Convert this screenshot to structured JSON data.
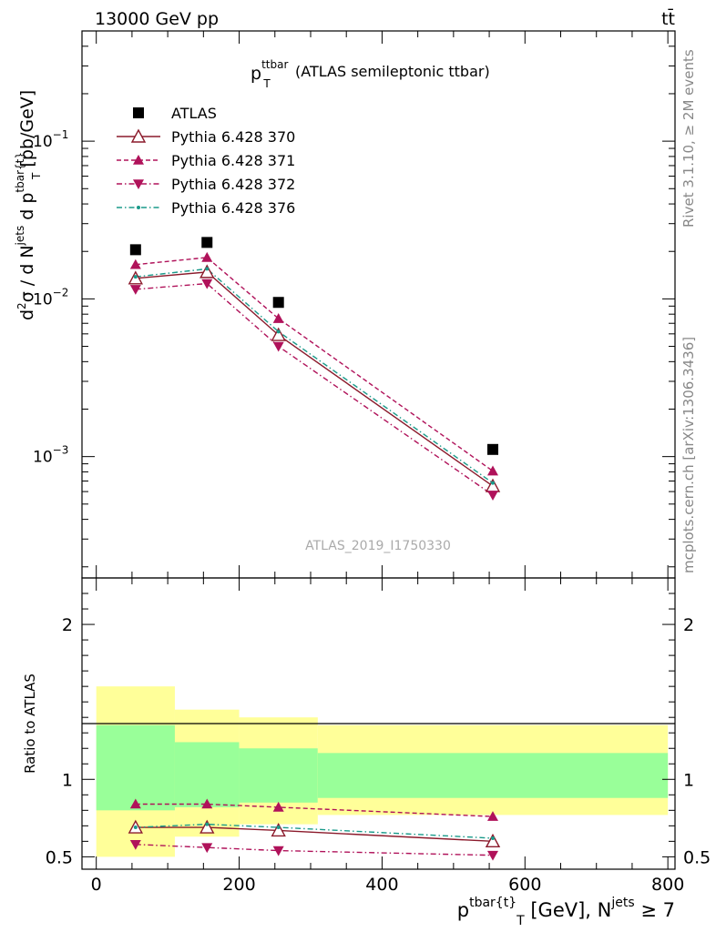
{
  "header": {
    "beam": "13000 GeV pp",
    "process": "tt̄"
  },
  "side_labels": {
    "rivet": "Rivet 3.1.10, ≥ 2M events",
    "mcplots": "mcplots.cern.ch [arXiv:1306.3436]"
  },
  "chart_data": [
    {
      "type": "line",
      "title_main": "p",
      "title_sup": "ttbar",
      "title_sub": "T",
      "title_rest": "(ATLAS semileptonic ttbar)",
      "watermark": "ATLAS_2019_I1750330",
      "ylabel": "d²σ / d N^jets d p^tbar{t}_T [pb/GeV]",
      "yscale": "log",
      "xlim": [
        -20,
        810
      ],
      "ylim": [
        0.00017,
        0.5
      ],
      "yticks": [
        {
          "value": 0.001,
          "mant": "10",
          "exp": "−3"
        },
        {
          "value": 0.01,
          "mant": "10",
          "exp": "−2"
        },
        {
          "value": 0.1,
          "mant": "10",
          "exp": "−1"
        }
      ],
      "legend_position": "top-left",
      "series": [
        {
          "name": "ATLAS",
          "color": "#000000",
          "marker": "square",
          "x": [
            55,
            155,
            255,
            555
          ],
          "y": [
            0.0205,
            0.0228,
            0.0095,
            0.00111
          ]
        },
        {
          "name": "Pythia 6.428 370",
          "color": "#8b1a2b",
          "marker": "triangle-up-open",
          "dash": "",
          "x": [
            55,
            155,
            255,
            555
          ],
          "y": [
            0.0135,
            0.0148,
            0.0059,
            0.00065
          ]
        },
        {
          "name": "Pythia 6.428 371",
          "color": "#b0125a",
          "marker": "triangle-up",
          "dash": "5,3",
          "x": [
            55,
            155,
            255,
            555
          ],
          "y": [
            0.0165,
            0.0183,
            0.0075,
            0.00081
          ]
        },
        {
          "name": "Pythia 6.428 372",
          "color": "#b0125a",
          "marker": "triangle-down",
          "dash": "6,3,1.5,3",
          "x": [
            55,
            155,
            255,
            555
          ],
          "y": [
            0.0115,
            0.0125,
            0.005,
            0.00057
          ]
        },
        {
          "name": "Pythia 6.428 376",
          "color": "#1a9a8a",
          "marker": "dot",
          "dash": "6,3,1.5,3",
          "x": [
            55,
            155,
            255,
            555
          ],
          "y": [
            0.0138,
            0.0155,
            0.0062,
            0.00068
          ]
        }
      ]
    },
    {
      "type": "line",
      "ylabel": "Ratio to ATLAS",
      "xlabel_main": "p",
      "xlabel_sup": "tbar{t}",
      "xlabel_sub": "T",
      "xlabel_unit": "[GeV], N",
      "xlabel_sup2": "jets",
      "xlabel_tail": "≥ 7",
      "xlim": [
        -20,
        810
      ],
      "ylim": [
        0.42,
        2.3
      ],
      "xticks": [
        0,
        200,
        400,
        600,
        800
      ],
      "yticks": [
        0.5,
        1,
        2
      ],
      "band_edges": [
        0,
        110,
        200,
        310,
        800
      ],
      "band_inner": [
        [
          0.8,
          1.35
        ],
        [
          0.82,
          1.24
        ],
        [
          0.85,
          1.2
        ],
        [
          0.88,
          1.17
        ]
      ],
      "band_outer": [
        [
          0.5,
          1.6
        ],
        [
          0.63,
          1.45
        ],
        [
          0.71,
          1.4
        ],
        [
          0.77,
          1.35
        ]
      ],
      "band_colors": {
        "outer": "#ffff99",
        "inner": "#99ff99"
      },
      "series": [
        {
          "name": "Pythia 6.428 370",
          "x": [
            55,
            155,
            255,
            555
          ],
          "y": [
            0.69,
            0.69,
            0.67,
            0.6
          ]
        },
        {
          "name": "Pythia 6.428 371",
          "x": [
            55,
            155,
            255,
            555
          ],
          "y": [
            0.84,
            0.84,
            0.82,
            0.76
          ]
        },
        {
          "name": "Pythia 6.428 372",
          "x": [
            55,
            155,
            255,
            555
          ],
          "y": [
            0.58,
            0.56,
            0.54,
            0.51
          ]
        },
        {
          "name": "Pythia 6.428 376",
          "x": [
            55,
            155,
            255,
            555
          ],
          "y": [
            0.69,
            0.71,
            0.69,
            0.62
          ]
        }
      ]
    }
  ]
}
